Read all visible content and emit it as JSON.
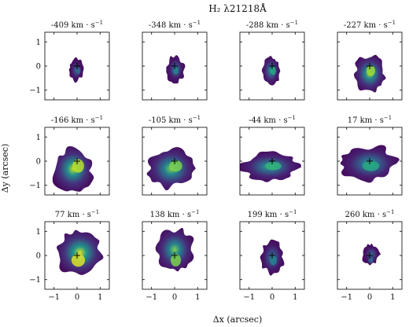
{
  "chart_data": {
    "type": "heatmap",
    "title": "H₂ λ21218Å",
    "xlabel": "Δx (arcsec)",
    "ylabel": "Δy (arcsec)",
    "xlim": [
      -1.4,
      1.4
    ],
    "ylim": [
      -1.4,
      1.4
    ],
    "x_ticks": [
      -1,
      0,
      1
    ],
    "y_ticks": [
      1,
      0,
      -1
    ],
    "colormap": "viridis",
    "velocity_unit": "km · s",
    "unit_exponent": "−1",
    "grid": false,
    "legend": "none",
    "panels": [
      {
        "velocity": "-409",
        "cx": -0.05,
        "cy": -0.15,
        "rx": 0.32,
        "ry": 0.48,
        "peak": 0.35
      },
      {
        "velocity": "-348",
        "cx": 0.0,
        "cy": -0.15,
        "rx": 0.42,
        "ry": 0.55,
        "peak": 0.45
      },
      {
        "velocity": "-288",
        "cx": 0.0,
        "cy": -0.2,
        "rx": 0.4,
        "ry": 0.62,
        "peak": 0.6
      },
      {
        "velocity": "-227",
        "cx": 0.0,
        "cy": -0.3,
        "rx": 0.68,
        "ry": 0.78,
        "peak": 0.85
      },
      {
        "velocity": "-166",
        "cx": -0.15,
        "cy": -0.4,
        "rx": 0.9,
        "ry": 1.0,
        "peak": 0.9
      },
      {
        "velocity": "-105",
        "cx": -0.2,
        "cy": -0.3,
        "rx": 1.0,
        "ry": 0.85,
        "peak": 0.8
      },
      {
        "velocity": "-44",
        "cx": -0.05,
        "cy": -0.25,
        "rx": 1.25,
        "ry": 0.62,
        "peak": 0.65
      },
      {
        "velocity": "17",
        "cx": -0.1,
        "cy": -0.1,
        "rx": 1.3,
        "ry": 0.75,
        "peak": 0.6
      },
      {
        "velocity": "77",
        "cx": 0.05,
        "cy": 0.15,
        "rx": 1.05,
        "ry": 0.95,
        "peak": 0.95
      },
      {
        "velocity": "138",
        "cx": 0.05,
        "cy": 0.2,
        "rx": 0.8,
        "ry": 0.92,
        "peak": 0.8
      },
      {
        "velocity": "199",
        "cx": 0.0,
        "cy": -0.05,
        "rx": 0.55,
        "ry": 0.72,
        "peak": 0.45
      },
      {
        "velocity": "260",
        "cx": 0.05,
        "cy": 0.05,
        "rx": 0.38,
        "ry": 0.45,
        "peak": 0.35
      }
    ]
  }
}
